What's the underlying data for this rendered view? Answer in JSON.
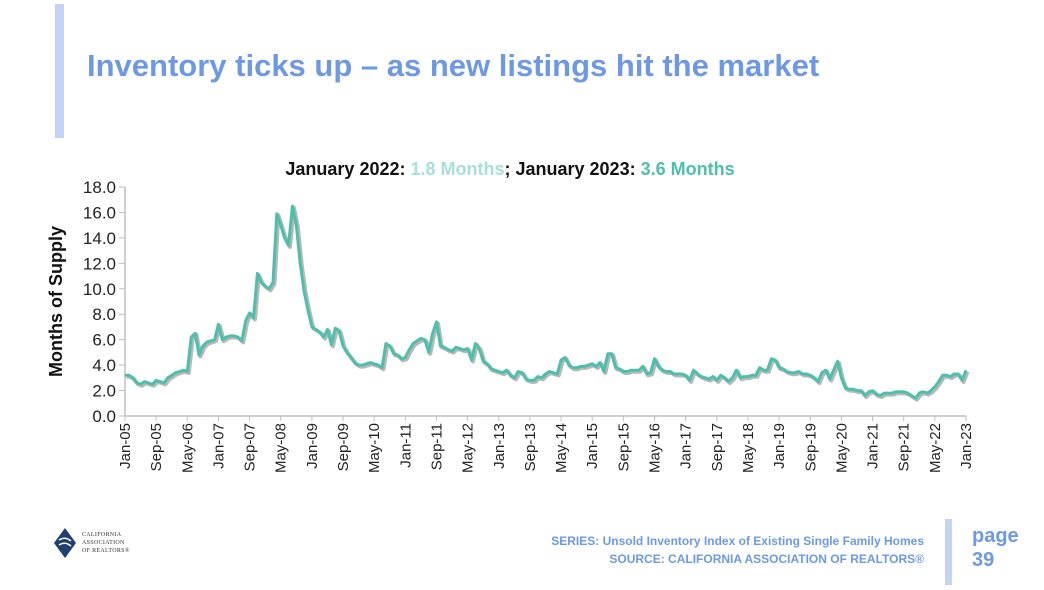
{
  "slide": {
    "title": "Inventory ticks up – as new listings hit the market",
    "subtitle_part1": "January 2022: ",
    "subtitle_value1": "1.8 Months",
    "subtitle_sep": "; January 2023: ",
    "subtitle_value2": "3.6 Months",
    "footer_series": "SERIES: Unsold Inventory Index of Existing Single Family Homes",
    "footer_source": "SOURCE: CALIFORNIA ASSOCIATION OF REALTORS®",
    "page_label": "page",
    "page_number": "39",
    "logo_lines": [
      "CALIFORNIA",
      "ASSOCIATION",
      "OF REALTORS®"
    ],
    "colors": {
      "title": "#6d98e6",
      "line": "#4cbfad",
      "value1": "#a6e0d8",
      "value2": "#4cbfad"
    }
  },
  "chart_data": {
    "type": "line",
    "title": "January 2022: 1.8 Months; January 2023: 3.6 Months",
    "xlabel": "",
    "ylabel": "Months of Supply",
    "ylim": [
      0,
      18
    ],
    "yticks": [
      "0.0",
      "2.0",
      "4.0",
      "6.0",
      "8.0",
      "10.0",
      "12.0",
      "14.0",
      "16.0",
      "18.0"
    ],
    "start": "Jan-05",
    "frequency": "monthly",
    "xtick_labels": [
      "Jan-05",
      "Sep-05",
      "May-06",
      "Jan-07",
      "Sep-07",
      "May-08",
      "Jan-09",
      "Sep-09",
      "May-10",
      "Jan-11",
      "Sep-11",
      "May-12",
      "Jan-13",
      "Sep-13",
      "May-14",
      "Jan-15",
      "Sep-15",
      "May-16",
      "Jan-17",
      "Sep-17",
      "May-18",
      "Jan-19",
      "Sep-19",
      "May-20",
      "Jan-21",
      "Sep-21",
      "May-22",
      "Jan-23"
    ],
    "xtick_step_months": 8,
    "series": [
      {
        "name": "Unsold Inventory Index",
        "values": [
          3.2,
          3.2,
          3.0,
          2.6,
          2.5,
          2.7,
          2.6,
          2.5,
          2.8,
          2.7,
          2.6,
          3.0,
          3.2,
          3.4,
          3.5,
          3.6,
          3.5,
          6.2,
          6.5,
          4.8,
          5.5,
          5.8,
          5.9,
          6.0,
          7.2,
          6.0,
          6.2,
          6.3,
          6.3,
          6.2,
          5.9,
          7.5,
          8.1,
          7.7,
          11.2,
          10.5,
          10.2,
          10.0,
          10.5,
          15.9,
          15.0,
          14.0,
          13.4,
          16.5,
          15.0,
          12.0,
          9.8,
          8.3,
          7.0,
          6.8,
          6.6,
          6.2,
          6.8,
          5.6,
          6.9,
          6.7,
          5.5,
          5.0,
          4.6,
          4.2,
          4.0,
          4.0,
          4.1,
          4.2,
          4.1,
          4.0,
          3.8,
          5.7,
          5.5,
          4.9,
          4.8,
          4.5,
          4.6,
          5.2,
          5.7,
          5.9,
          6.1,
          6.0,
          5.0,
          6.5,
          7.4,
          5.5,
          5.4,
          5.2,
          5.1,
          5.4,
          5.3,
          5.2,
          5.3,
          4.4,
          5.7,
          5.3,
          4.3,
          4.1,
          3.7,
          3.6,
          3.5,
          3.4,
          3.6,
          3.2,
          3.0,
          3.5,
          3.4,
          2.9,
          2.8,
          2.8,
          3.1,
          3.0,
          3.3,
          3.5,
          3.4,
          3.3,
          4.4,
          4.6,
          4.0,
          3.8,
          3.8,
          3.9,
          3.9,
          4.0,
          4.1,
          3.9,
          4.2,
          3.5,
          4.9,
          4.9,
          3.8,
          3.7,
          3.5,
          3.5,
          3.6,
          3.6,
          3.6,
          3.9,
          3.3,
          3.4,
          4.5,
          3.9,
          3.6,
          3.5,
          3.5,
          3.3,
          3.3,
          3.3,
          3.2,
          2.8,
          3.6,
          3.3,
          3.1,
          3.0,
          2.9,
          3.1,
          2.8,
          3.2,
          3.0,
          2.7,
          3.0,
          3.6,
          3.0,
          3.1,
          3.1,
          3.2,
          3.2,
          3.8,
          3.6,
          3.6,
          4.5,
          4.4,
          3.8,
          3.7,
          3.5,
          3.4,
          3.4,
          3.5,
          3.3,
          3.3,
          3.2,
          3.0,
          2.7,
          3.4,
          3.6,
          2.9,
          3.6,
          4.3,
          3.0,
          2.2,
          2.1,
          2.1,
          2.0,
          2.0,
          1.6,
          1.9,
          2.0,
          1.7,
          1.6,
          1.8,
          1.8,
          1.8,
          1.9,
          1.9,
          1.9,
          1.8,
          1.6,
          1.4,
          1.8,
          1.9,
          1.8,
          2.0,
          2.3,
          2.7,
          3.2,
          3.2,
          3.1,
          3.3,
          3.3,
          2.8,
          3.6
        ]
      }
    ],
    "grid": false,
    "legend": "none"
  }
}
